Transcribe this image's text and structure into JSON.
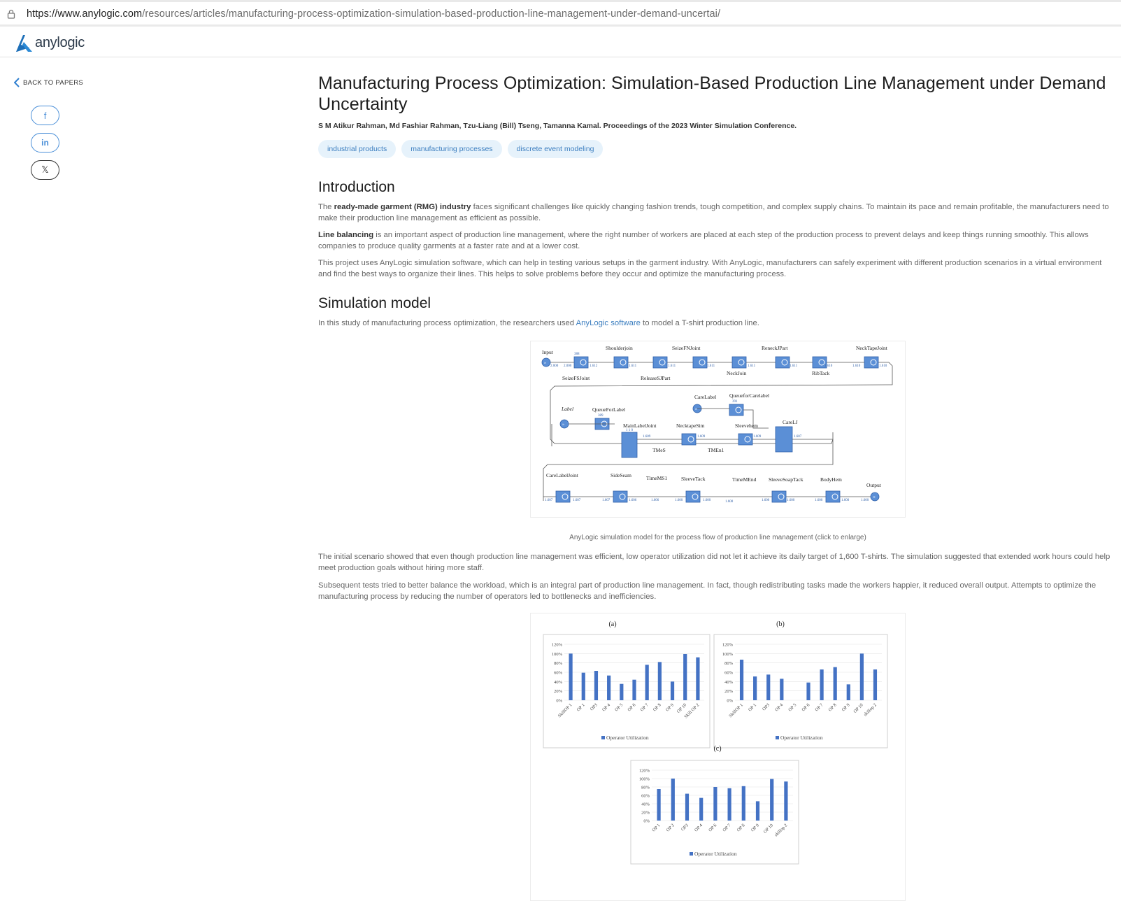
{
  "browser": {
    "url_host": "https://www.anylogic.com",
    "url_path": "/resources/articles/manufacturing-process-optimization-simulation-based-production-line-management-under-demand-uncertai/"
  },
  "header": {
    "logo_text": "anylogic"
  },
  "sidebar": {
    "back_label": "BACK TO PAPERS",
    "share": [
      {
        "icon": "facebook-icon",
        "glyph": "f"
      },
      {
        "icon": "linkedin-icon",
        "glyph": "in"
      },
      {
        "icon": "x-icon",
        "glyph": "𝕏"
      }
    ]
  },
  "article": {
    "title": "Manufacturing Process Optimization: Simulation-Based Production Line Management under Demand Uncertainty",
    "authors": "S M Atikur Rahman, Md Fashiar Rahman, Tzu-Liang (Bill) Tseng, Tamanna Kamal. Proceedings of the 2023 Winter Simulation Conference.",
    "tags": [
      "industrial products",
      "manufacturing processes",
      "discrete event modeling"
    ],
    "intro_heading": "Introduction",
    "intro_p1_pre": "The ",
    "intro_p1_bold": "ready-made garment (RMG) industry",
    "intro_p1_post": " faces significant challenges like quickly changing fashion trends, tough competition, and complex supply chains. To maintain its pace and remain profitable, the manufacturers need to make their production line management as efficient as possible.",
    "intro_p2_bold": "Line balancing",
    "intro_p2_post": " is an important aspect of production line management, where the right number of workers are placed at each step of the production process to prevent delays and keep things running smoothly. This allows companies to produce quality garments at a faster rate and at a lower cost.",
    "intro_p3": "This project uses AnyLogic simulation software, which can help in testing various setups in the garment industry. With AnyLogic, manufacturers can safely experiment with different production scenarios in a virtual environment and find the best ways to organize their lines. This helps to solve problems before they occur and optimize the manufacturing process.",
    "sim_heading": "Simulation model",
    "sim_p1_pre": "In this study of manufacturing process optimization, the researchers used ",
    "sim_p1_link": "AnyLogic software",
    "sim_p1_post": " to model a T-shirt production line.",
    "fig1_caption": "AnyLogic simulation model for the process flow of production line management (click to enlarge)",
    "sim_p2": "The initial scenario showed that even though production line management was efficient, low operator utilization did not let it achieve its daily target of 1,600 T-shirts. The simulation suggested that extended work hours could help meet production goals without hiring more staff.",
    "sim_p3": "Subsequent tests tried to better balance the workload, which is an integral part of production line management. In fact, though redistributing tasks made the workers happier, it reduced overall output. Attempts to optimize the manufacturing process by reducing the number of operators led to bottlenecks and inefficiencies."
  },
  "diagram": {
    "row1": [
      "Input",
      "SeizeFSJoint",
      "Shoulderjoin",
      "ReleaseSJPart",
      "SeizeFNJoint",
      "NeckJoin",
      "ReneckJPart",
      "RibTack",
      "NeckTapeJoint"
    ],
    "row2": [
      "Label",
      "QueueForLabel",
      "MainLabelJoint",
      "TMeS",
      "NecktapeSim",
      "TMEn1",
      "Sleevehem",
      "CareLabel",
      "QueueforCarelabel",
      "CareLJ"
    ],
    "row3": [
      "CareLabelJoint",
      "SideSeam",
      "TimeMS1",
      "SleeveTack",
      "TimeMEnd",
      "SleeveSoapTack",
      "BodyHem",
      "Output"
    ],
    "counts": [
      "2.000",
      "2.000",
      "388",
      "1.612",
      "1.611",
      "1.610",
      "1.609",
      "1.607",
      "1.606",
      "1.600",
      "391",
      "389",
      "1 1 0",
      "0",
      "1",
      "5"
    ]
  },
  "chart_data": [
    {
      "type": "bar",
      "title": "(a)",
      "categories": [
        "SkillOP 1",
        "OP 1",
        "OP3",
        "OP 4",
        "OP 5",
        "OP 6",
        "OP 7",
        "OP 8",
        "OP 9",
        "OP 10",
        "Skill OP 2"
      ],
      "series": [
        {
          "name": "Operator Utilization",
          "values": [
            100,
            59,
            63,
            53,
            35,
            44,
            76,
            82,
            40,
            99,
            92
          ]
        }
      ],
      "yticks": [
        "120%",
        "100%",
        "80%",
        "60%",
        "40%",
        "20%",
        "0%"
      ],
      "ylim": [
        0,
        120
      ],
      "legend": "bottom",
      "color": "#4472c4"
    },
    {
      "type": "bar",
      "title": "(b)",
      "categories": [
        "SkillOP 1",
        "OP 1",
        "OP3",
        "OP 4",
        "OP 5",
        "OP 6",
        "OP 7",
        "OP 8",
        "OP 9",
        "OP 10",
        "skillop 2"
      ],
      "series": [
        {
          "name": "Operator Utilization",
          "values": [
            87,
            51,
            55,
            46,
            0,
            38,
            66,
            71,
            34,
            100,
            66
          ]
        }
      ],
      "yticks": [
        "120%",
        "100%",
        "80%",
        "60%",
        "40%",
        "20%",
        "0%"
      ],
      "ylim": [
        0,
        120
      ],
      "legend": "bottom",
      "color": "#4472c4"
    },
    {
      "type": "bar",
      "title": "(c)",
      "categories": [
        "OP 1",
        "OP 2",
        "OP3",
        "OP 4",
        "OP 6",
        "OP 7",
        "OP 8",
        "OP 9",
        "OP 10",
        "skillop 2"
      ],
      "series": [
        {
          "name": "Operator Utilization",
          "values": [
            75,
            100,
            64,
            54,
            80,
            77,
            82,
            46,
            99,
            93
          ]
        }
      ],
      "yticks": [
        "120%",
        "100%",
        "80%",
        "60%",
        "40%",
        "20%",
        "0%"
      ],
      "ylim": [
        0,
        120
      ],
      "legend": "bottom",
      "color": "#4472c4"
    }
  ]
}
